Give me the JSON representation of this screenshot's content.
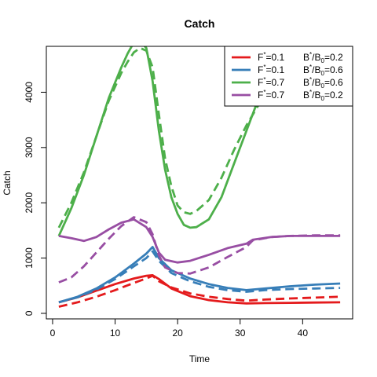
{
  "chart_data": {
    "type": "line",
    "title": "Catch",
    "xlabel": "Time",
    "ylabel": "Catch",
    "xlim": [
      -1,
      48
    ],
    "ylim": [
      -100,
      4830
    ],
    "xticks": [
      0,
      10,
      20,
      30,
      40
    ],
    "yticks": [
      0,
      1000,
      2000,
      3000,
      4000
    ],
    "legend_position": "top-right",
    "grid": false,
    "series": [
      {
        "name": "F*=0.1  B*/B0=0.2",
        "legend": {
          "f": "0.1",
          "b": "0.2"
        },
        "color": "#E41A1C",
        "solid": {
          "x": [
            1,
            4,
            7,
            10,
            13,
            15,
            16,
            17,
            19,
            22,
            25,
            28,
            31,
            34,
            38,
            42,
            46
          ],
          "y": [
            200,
            290,
            410,
            530,
            630,
            680,
            690,
            620,
            450,
            310,
            240,
            200,
            180,
            185,
            190,
            195,
            200
          ]
        },
        "dashed": {
          "x": [
            1,
            4,
            7,
            10,
            13,
            15,
            16,
            17,
            19,
            22,
            25,
            28,
            31,
            34,
            38,
            42,
            46
          ],
          "y": [
            120,
            200,
            300,
            420,
            550,
            630,
            680,
            580,
            470,
            360,
            300,
            260,
            230,
            250,
            270,
            285,
            300
          ]
        }
      },
      {
        "name": "F*=0.1  B*/B0=0.6",
        "legend": {
          "f": "0.1",
          "b": "0.6"
        },
        "color": "#377EB8",
        "solid": {
          "x": [
            1,
            4,
            7,
            10,
            13,
            15,
            16,
            17,
            19,
            22,
            25,
            28,
            31,
            34,
            38,
            42,
            46
          ],
          "y": [
            200,
            300,
            450,
            650,
            900,
            1080,
            1200,
            1000,
            780,
            630,
            530,
            460,
            420,
            450,
            490,
            520,
            540
          ]
        },
        "dashed": {
          "x": [
            1,
            4,
            7,
            10,
            13,
            15,
            16,
            17,
            19,
            22,
            25,
            28,
            31,
            34,
            38,
            42,
            46
          ],
          "y": [
            200,
            290,
            430,
            620,
            850,
            1000,
            1120,
            950,
            730,
            580,
            480,
            420,
            390,
            420,
            440,
            450,
            460
          ]
        }
      },
      {
        "name": "F*=0.7  B*/B0=0.6",
        "legend": {
          "f": "0.7",
          "b": "0.6"
        },
        "color": "#4DAF4A",
        "solid": {
          "x": [
            1,
            3,
            5,
            7,
            9,
            11,
            12,
            13,
            14,
            15,
            16,
            17,
            18,
            19,
            20,
            21,
            22,
            23,
            25,
            27,
            29,
            31,
            33,
            35
          ],
          "y": [
            1400,
            1900,
            2500,
            3200,
            3900,
            4450,
            4700,
            4900,
            4920,
            4800,
            4200,
            3300,
            2600,
            2100,
            1800,
            1600,
            1550,
            1560,
            1700,
            2100,
            2700,
            3300,
            3900,
            4400
          ]
        },
        "dashed": {
          "x": [
            1,
            3,
            5,
            7,
            9,
            11,
            12,
            13,
            14,
            15,
            16,
            17,
            18,
            19,
            20,
            21,
            22,
            23,
            25,
            27,
            29,
            31,
            33,
            35
          ],
          "y": [
            1550,
            2000,
            2550,
            3200,
            3850,
            4350,
            4550,
            4720,
            4800,
            4750,
            4450,
            3600,
            2800,
            2300,
            1950,
            1830,
            1800,
            1850,
            2050,
            2450,
            2950,
            3400,
            3780,
            4000
          ]
        }
      },
      {
        "name": "F*=0.7  B*/B0=0.2",
        "legend": {
          "f": "0.7",
          "b": "0.2"
        },
        "color": "#984EA3",
        "solid": {
          "x": [
            1,
            3,
            5,
            7,
            9,
            11,
            13,
            15,
            16,
            17,
            18,
            20,
            22,
            25,
            28,
            31,
            32,
            35,
            38,
            42,
            46
          ],
          "y": [
            1400,
            1360,
            1310,
            1380,
            1520,
            1640,
            1700,
            1560,
            1380,
            1100,
            970,
            920,
            950,
            1060,
            1180,
            1260,
            1330,
            1380,
            1400,
            1400,
            1400
          ]
        },
        "dashed": {
          "x": [
            1,
            3,
            5,
            7,
            9,
            11,
            13,
            15,
            16,
            17,
            18,
            20,
            22,
            25,
            28,
            31,
            32,
            35,
            38,
            42,
            46
          ],
          "y": [
            560,
            650,
            850,
            1100,
            1350,
            1580,
            1740,
            1650,
            1430,
            1050,
            830,
            730,
            720,
            830,
            1020,
            1200,
            1320,
            1380,
            1400,
            1410,
            1410
          ]
        }
      }
    ]
  }
}
